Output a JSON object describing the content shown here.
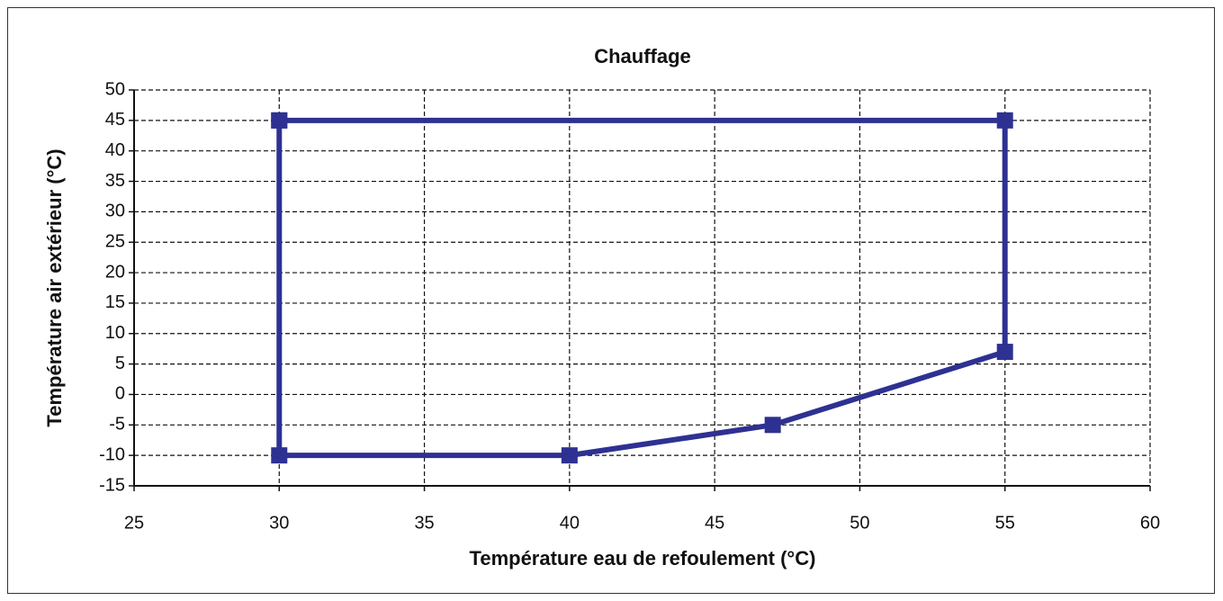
{
  "chart_data": {
    "type": "line",
    "title": "Chauffage",
    "x_label": "Température eau de refoulement (°C)",
    "y_label": "Température air extérieur (°C)",
    "x": [
      30,
      55,
      55,
      47,
      40,
      30,
      30
    ],
    "values": [
      45,
      45,
      7,
      -5,
      -10,
      -10,
      45
    ],
    "color": "#2e3192",
    "xlim": [
      25,
      60
    ],
    "xticks": [
      25,
      30,
      35,
      40,
      45,
      50,
      55,
      60
    ],
    "ylim": [
      -15,
      50
    ],
    "yticks": [
      -15,
      -10,
      -5,
      0,
      5,
      10,
      15,
      20,
      25,
      30,
      35,
      40,
      45,
      50
    ],
    "grid": true
  }
}
